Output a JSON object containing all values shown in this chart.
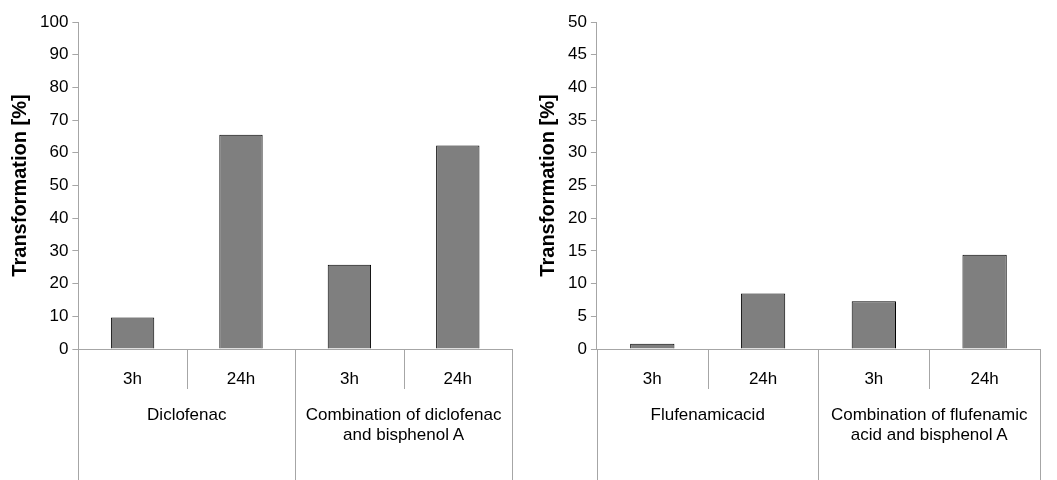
{
  "chart_data": [
    {
      "type": "bar",
      "ylabel": "Transformation [%]",
      "categories": [
        "3h",
        "24h",
        "3h",
        "24h"
      ],
      "values": [
        9.6,
        65.5,
        25.8,
        62.2
      ],
      "color": "#7f7f7f",
      "ylim": [
        0,
        100
      ],
      "yticks": [
        0,
        10,
        20,
        30,
        40,
        50,
        60,
        70,
        80,
        90,
        100
      ],
      "grid": false,
      "annotations": [
        "Diclofenac",
        "Combination of diclofenac and bisphenol A"
      ]
    },
    {
      "type": "bar",
      "ylabel": "Transformation [%]",
      "categories": [
        "3h",
        "24h",
        "3h",
        "24h"
      ],
      "values": [
        0.8,
        8.5,
        7.3,
        14.4
      ],
      "color": "#7f7f7f",
      "ylim": [
        0,
        50
      ],
      "yticks": [
        0,
        5,
        10,
        15,
        20,
        25,
        30,
        35,
        40,
        45,
        50
      ],
      "grid": false,
      "annotations": [
        "Flufenamicacid",
        "Combination of flufenamic acid and bisphenol A"
      ]
    }
  ]
}
